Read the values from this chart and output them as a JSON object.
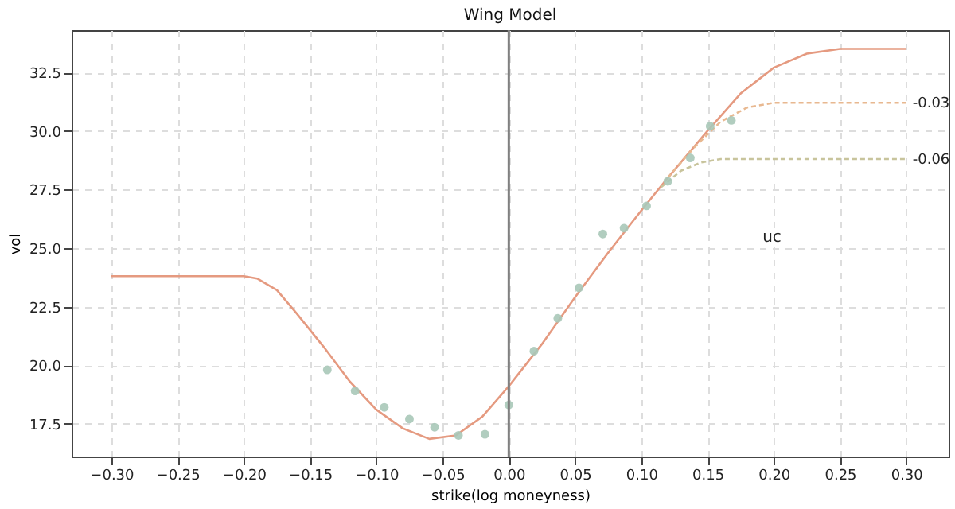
{
  "chart_data": {
    "type": "line",
    "title": "Wing Model",
    "xlabel": "strike(log moneyness)",
    "ylabel": "vol",
    "xlim": [
      -0.33,
      0.332
    ],
    "ylim": [
      16.1,
      34.3
    ],
    "xticks": [
      {
        "value": -0.3,
        "label": "−0.30"
      },
      {
        "value": -0.25,
        "label": "−0.25"
      },
      {
        "value": -0.2,
        "label": "−0.20"
      },
      {
        "value": -0.15,
        "label": "−0.15"
      },
      {
        "value": -0.1,
        "label": "−0.10"
      },
      {
        "value": -0.05,
        "label": "−0.05"
      },
      {
        "value": 0,
        "label": "0.00"
      },
      {
        "value": 0.05,
        "label": "0.05"
      },
      {
        "value": 0.1,
        "label": "0.10"
      },
      {
        "value": 0.15,
        "label": "0.15"
      },
      {
        "value": 0.2,
        "label": "0.20"
      },
      {
        "value": 0.25,
        "label": "0.25"
      },
      {
        "value": 0.3,
        "label": "0.30"
      }
    ],
    "yticks": [
      17.5,
      {
        "value": 20,
        "label": "20.0"
      },
      22.5,
      {
        "value": 25,
        "label": "25.0"
      },
      27.5,
      {
        "value": 30,
        "label": "30.0"
      },
      32.5
    ],
    "grid": true,
    "marker": "none",
    "ref_lines": [
      {
        "axis": "x",
        "value": 0,
        "color": "#808080"
      }
    ],
    "annotations": [
      "uc"
    ],
    "series": [
      {
        "color": "#e59a80",
        "line_style": "solid",
        "x": [
          -0.3,
          -0.2,
          -0.19,
          -0.175,
          -0.16,
          -0.14,
          -0.12,
          -0.1,
          -0.08,
          -0.06,
          -0.04,
          -0.02,
          0.0,
          0.025,
          0.05,
          0.075,
          0.1,
          0.12,
          0.15,
          0.175,
          0.2,
          0.225,
          0.25,
          0.3
        ],
        "values": [
          23.8,
          23.8,
          23.7,
          23.2,
          22.2,
          20.8,
          19.3,
          18.1,
          17.3,
          16.85,
          17.0,
          17.8,
          19.1,
          20.9,
          22.9,
          24.8,
          26.6,
          28.0,
          30.0,
          31.6,
          32.7,
          33.3,
          33.5,
          33.5
        ]
      },
      {
        "type": "line",
        "name": "-0.03",
        "color": "#e8b890",
        "line_style": "dashed",
        "x": [
          0.12,
          0.14,
          0.16,
          0.18,
          0.2,
          0.3
        ],
        "values": [
          28.0,
          29.3,
          30.4,
          31.0,
          31.2,
          31.2
        ]
      },
      {
        "type": "line",
        "name": "-0.06",
        "color": "#c8c49c",
        "line_style": "dashed",
        "x": [
          0.115,
          0.13,
          0.145,
          0.16,
          0.3
        ],
        "values": [
          27.6,
          28.3,
          28.65,
          28.8,
          28.8
        ]
      },
      {
        "type": "scatter",
        "color": "#a8c8b8",
        "marker": "circle",
        "x": [
          -0.137,
          -0.116,
          -0.094,
          -0.075,
          -0.056,
          -0.038,
          -0.018,
          0.0,
          0.019,
          0.037,
          0.053,
          0.071,
          0.087,
          0.104,
          0.12,
          0.137,
          0.152,
          0.168
        ],
        "values": [
          19.8,
          18.9,
          18.2,
          17.7,
          17.35,
          17.0,
          17.05,
          18.3,
          20.6,
          22.0,
          23.3,
          25.6,
          25.85,
          26.8,
          27.85,
          28.85,
          30.2,
          30.45
        ]
      }
    ]
  }
}
